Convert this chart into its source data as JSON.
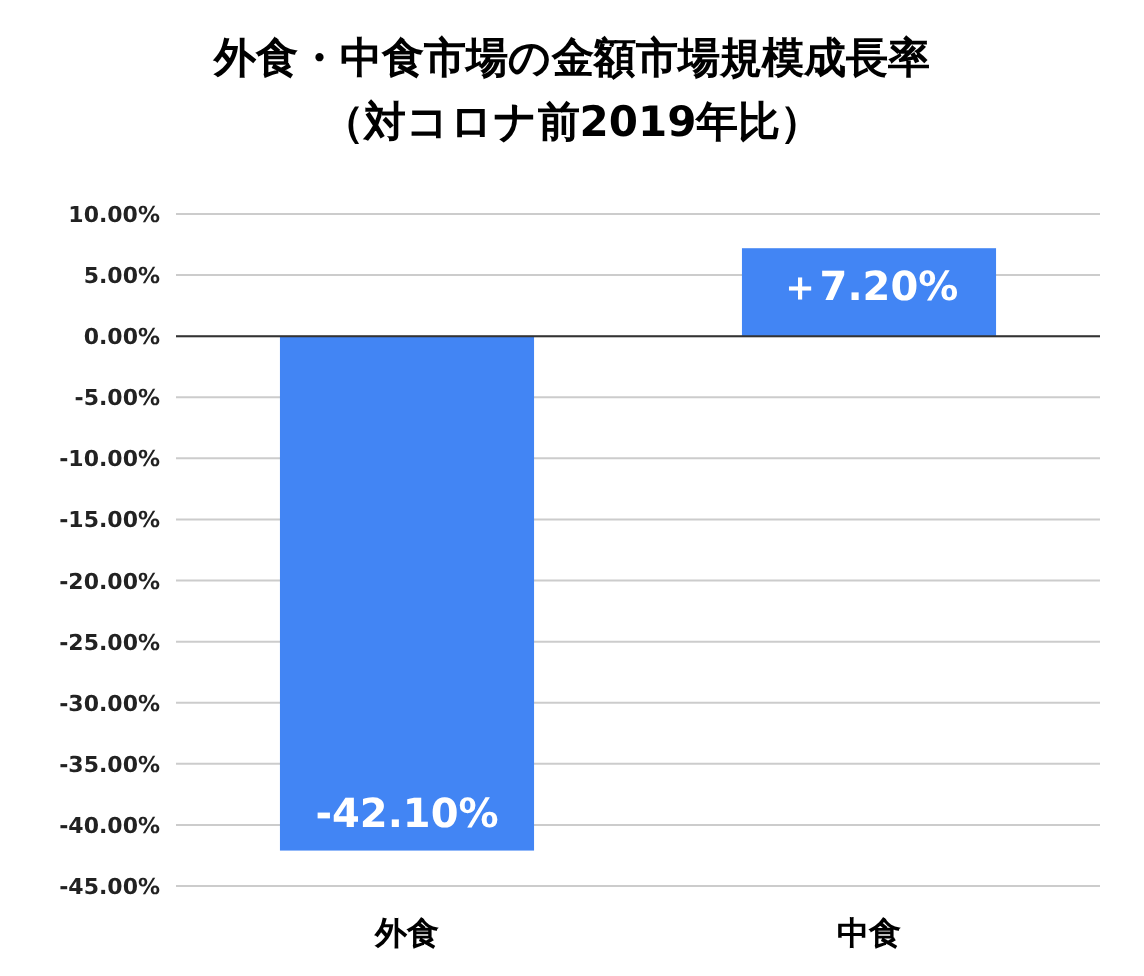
{
  "chart_data": {
    "type": "bar",
    "title": "外食・中食市場の金額市場規模成長率",
    "subtitle": "（対コロナ前2019年比）",
    "categories": [
      "外食",
      "中食"
    ],
    "values": [
      -42.1,
      7.2
    ],
    "value_labels": [
      "-42.10%",
      "＋7.20%"
    ],
    "color": "#4285f4",
    "ylim": [
      -45,
      10
    ],
    "yticks": [
      {
        "value": 10,
        "label": "10.00%"
      },
      {
        "value": 5,
        "label": "5.00%"
      },
      {
        "value": 0,
        "label": "0.00%"
      },
      {
        "value": -5,
        "label": "-5.00%"
      },
      {
        "value": -10,
        "label": "-10.00%"
      },
      {
        "value": -15,
        "label": "-15.00%"
      },
      {
        "value": -20,
        "label": "-20.00%"
      },
      {
        "value": -25,
        "label": "-25.00%"
      },
      {
        "value": -30,
        "label": "-30.00%"
      },
      {
        "value": -35,
        "label": "-35.00%"
      },
      {
        "value": -40,
        "label": "-40.00%"
      },
      {
        "value": -45,
        "label": "-45.00%"
      }
    ],
    "grid": "y"
  }
}
